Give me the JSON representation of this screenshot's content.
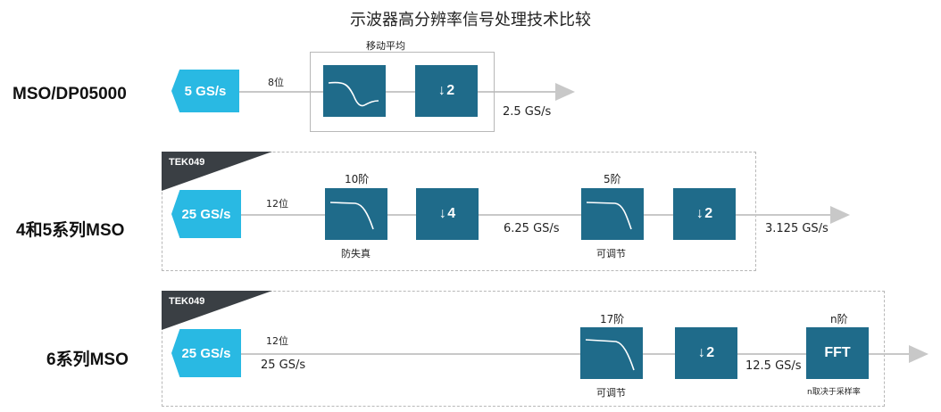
{
  "title": "示波器高分辨率信号处理技术比较",
  "rows": [
    {
      "label": "MSO/DP05000",
      "input_rate": "5 GS/s",
      "bits": "8位",
      "group_label": "移动平均",
      "decimate": "2",
      "output_rate": "2.5 GS/s"
    },
    {
      "label": "4和5系列MSO",
      "tag": "TEK049",
      "input_rate": "25 GS/s",
      "bits": "12位",
      "filter1_order": "10阶",
      "filter1_caption": "防失真",
      "decimate1": "4",
      "mid_rate": "6.25 GS/s",
      "filter2_order": "5阶",
      "filter2_caption": "可调节",
      "decimate2": "2",
      "output_rate": "3.125 GS/s"
    },
    {
      "label": "6系列MSO",
      "tag": "TEK049",
      "input_rate": "25 GS/s",
      "bits": "12位",
      "rate_after": "25 GS/s",
      "filter_order": "17阶",
      "filter_caption": "可调节",
      "decimate": "2",
      "mid_rate": "12.5 GS/s",
      "fft_order": "n阶",
      "fft_label": "FFT",
      "fft_caption": "n取决于采样率"
    }
  ],
  "colors": {
    "input_block": "#29b9e3",
    "dsp_block": "#1f6b8a",
    "tag_bg": "#3a3f44",
    "signal_line": "#c8c8c8"
  },
  "icons": [
    "down-arrow-icon",
    "filter-curve-icon",
    "moving-average-curve-icon"
  ]
}
